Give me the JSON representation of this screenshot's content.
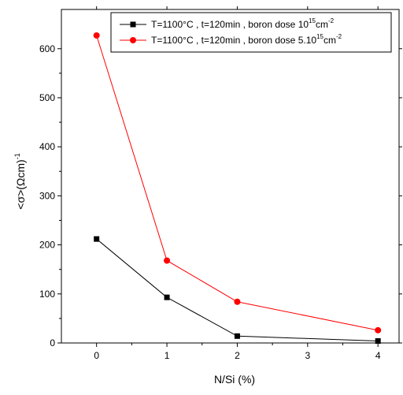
{
  "chart_data": {
    "type": "line",
    "title": "",
    "xlabel": "N/Si (%)",
    "ylabel_main": "<σ>(Ωcm)",
    "ylabel_sup": "-1",
    "xlim": [
      -0.5,
      4.3
    ],
    "ylim": [
      0,
      680
    ],
    "x_ticks": [
      0,
      1,
      2,
      3,
      4
    ],
    "x_tick_labels": [
      "0",
      "1",
      "2",
      "3",
      "4"
    ],
    "y_ticks": [
      0,
      100,
      200,
      300,
      400,
      500,
      600
    ],
    "y_tick_labels": [
      "0",
      "100",
      "200",
      "300",
      "400",
      "500",
      "600"
    ],
    "grid": false,
    "legend_position": "top-right",
    "series": [
      {
        "name": "T=1100°C , t=120min , boron dose 10^15cm^-2",
        "legend_parts": {
          "main": "T=1100°C , t=120min , boron dose 10",
          "sup1": "15",
          "unit": "cm",
          "sup2": "-2"
        },
        "color": "#000000",
        "marker": "square",
        "x": [
          0,
          1,
          2,
          4
        ],
        "y": [
          212,
          93,
          14,
          4
        ]
      },
      {
        "name": "T=1100°C , t=120min , boron dose 5.10^15cm^-2",
        "legend_parts": {
          "main": "T=1100°C , t=120min , boron dose 5.10",
          "sup1": "15",
          "unit": "cm",
          "sup2": "-2"
        },
        "color": "#ff0000",
        "marker": "circle",
        "x": [
          0,
          1,
          2,
          4
        ],
        "y": [
          627,
          168,
          84,
          26
        ]
      }
    ]
  }
}
